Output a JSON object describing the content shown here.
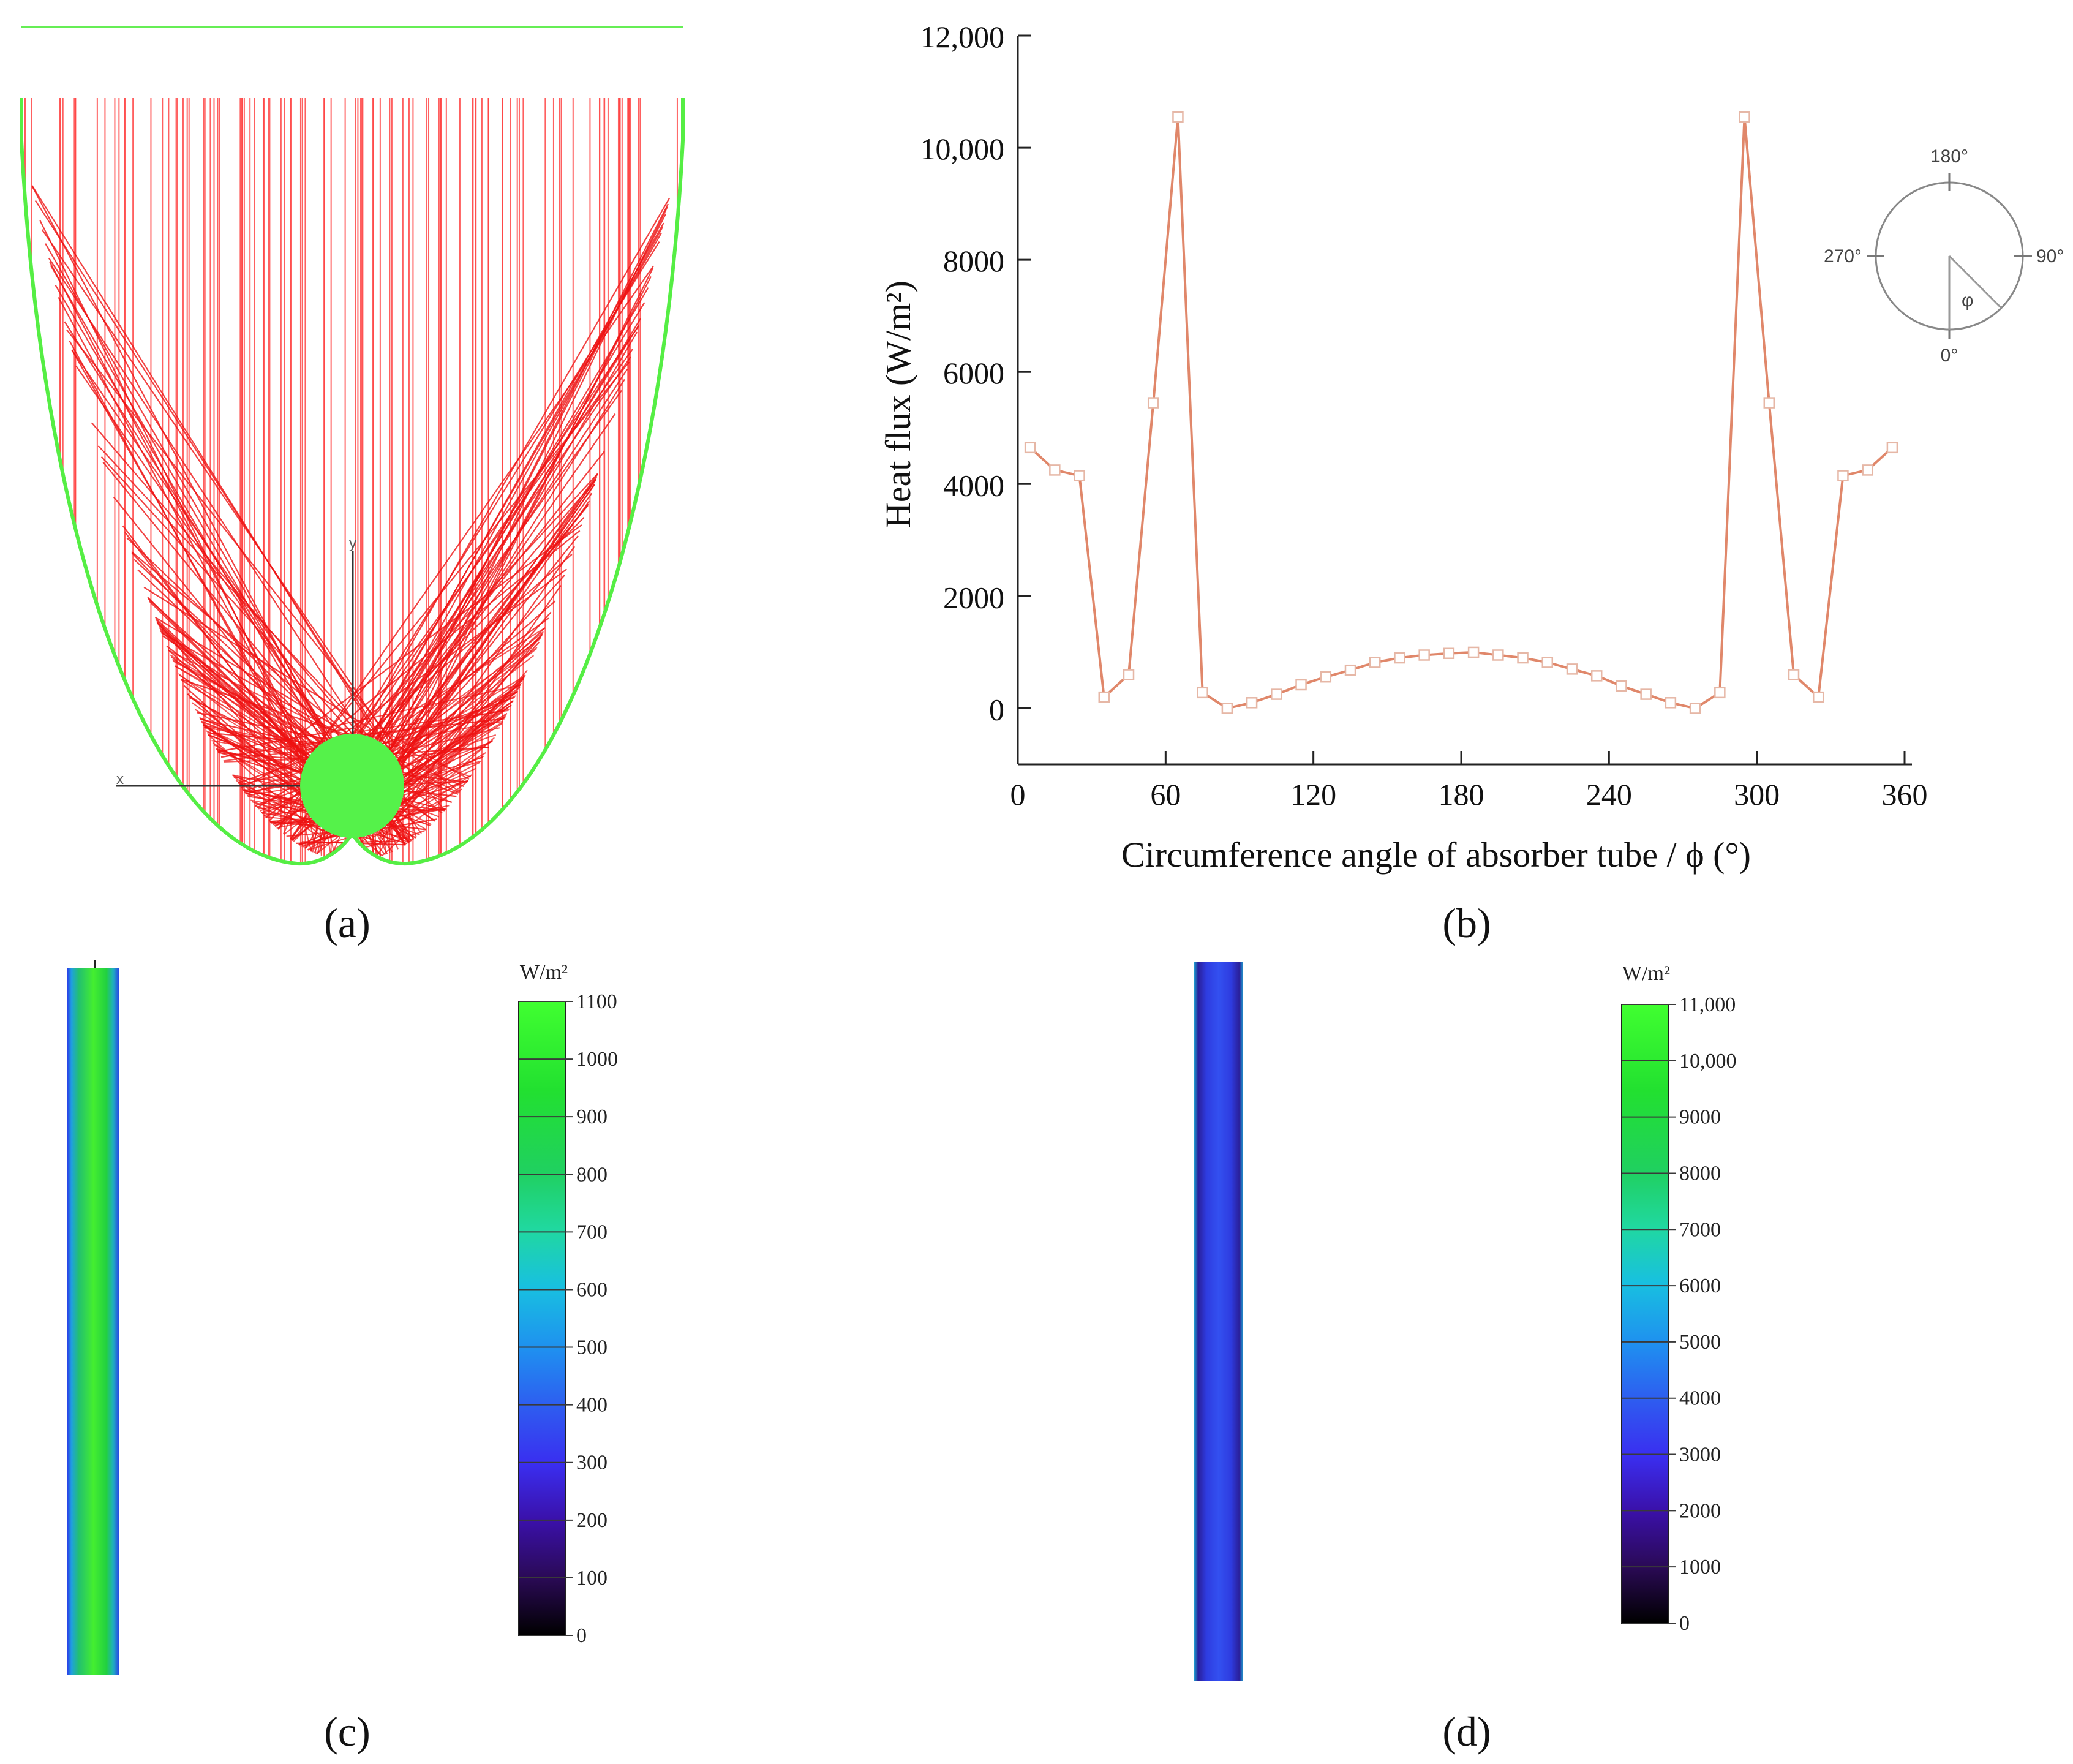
{
  "panels": {
    "a": {
      "label": "(a)",
      "axis_x_label": "x",
      "axis_y_label": "y"
    },
    "b": {
      "label": "(b)"
    },
    "c": {
      "label": "(c)"
    },
    "d": {
      "label": "(d)"
    }
  },
  "chart_data": [
    {
      "type": "line",
      "panel": "b",
      "title": "",
      "xlabel": "Circumference angle of absorber tube / ϕ (°)",
      "ylabel": "Heat flux (W/m²)",
      "xlim": [
        0,
        360
      ],
      "ylim": [
        -1000,
        12000
      ],
      "xticks": [
        0,
        60,
        120,
        180,
        240,
        300,
        360
      ],
      "yticks": [
        0,
        2000,
        4000,
        6000,
        8000,
        10000,
        12000
      ],
      "ytick_labels": [
        "0",
        "2000",
        "4000",
        "6000",
        "8000",
        "10,000",
        "12,000"
      ],
      "color": "#e0876a",
      "series": [
        {
          "name": "Heat flux",
          "x": [
            5,
            15,
            25,
            35,
            45,
            55,
            65,
            75,
            85,
            95,
            105,
            115,
            125,
            135,
            145,
            155,
            165,
            175,
            185,
            195,
            205,
            215,
            225,
            235,
            245,
            255,
            265,
            275,
            285,
            295,
            305,
            315,
            325,
            335,
            345,
            355
          ],
          "y": [
            4650,
            4250,
            4150,
            200,
            600,
            5450,
            10550,
            280,
            0,
            100,
            250,
            420,
            560,
            680,
            820,
            900,
            950,
            980,
            1000,
            950,
            900,
            820,
            700,
            580,
            400,
            250,
            100,
            0,
            280,
            10550,
            5450,
            600,
            200,
            4150,
            4250,
            4650
          ]
        }
      ],
      "inset": {
        "labels": [
          "180°",
          "90°",
          "0°",
          "270°"
        ],
        "angle_symbol": "φ"
      }
    },
    {
      "type": "heatmap",
      "panel": "c",
      "colorbar_unit": "W/m²",
      "colorbar_range": [
        0,
        1100
      ],
      "colorbar_ticks": [
        "0",
        "100",
        "200",
        "300",
        "400",
        "500",
        "600",
        "700",
        "800",
        "900",
        "1000",
        "1100"
      ],
      "colormap": [
        "#000000",
        "#2a0a55",
        "#3a10a8",
        "#3a2ef0",
        "#2e5cf0",
        "#1f8ff0",
        "#18c0e0",
        "#20d8a0",
        "#20d060",
        "#22e030",
        "#40ff30"
      ]
    },
    {
      "type": "heatmap",
      "panel": "d",
      "colorbar_unit": "W/m²",
      "colorbar_range": [
        0,
        11000
      ],
      "colorbar_ticks": [
        "0",
        "1000",
        "2000",
        "3000",
        "4000",
        "5000",
        "6000",
        "7000",
        "8000",
        "9000",
        "10,000",
        "11,000"
      ],
      "colormap": [
        "#000000",
        "#2a0a55",
        "#3a10a8",
        "#3a2ef0",
        "#2e5cf0",
        "#1f8ff0",
        "#18c0e0",
        "#20d8a0",
        "#20d060",
        "#22e030",
        "#40ff30"
      ]
    }
  ]
}
